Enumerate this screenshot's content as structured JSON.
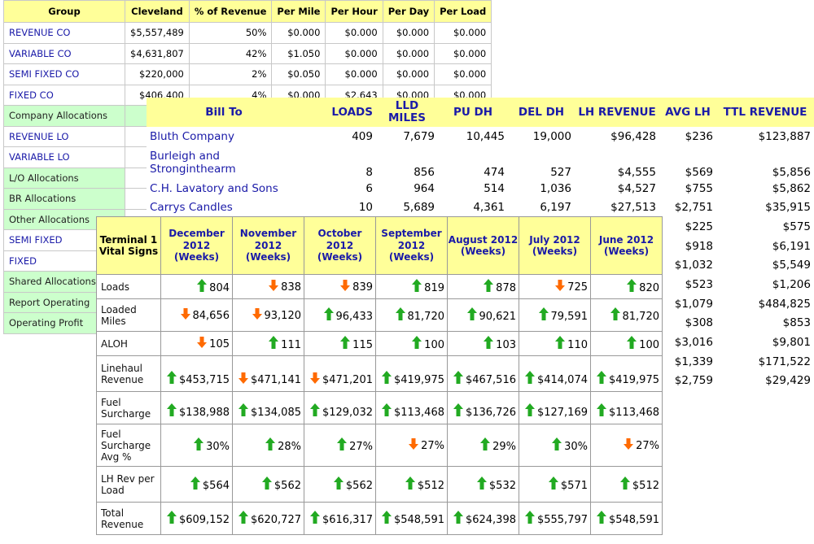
{
  "group_table": {
    "headers": [
      "Group",
      "Cleveland",
      "% of Revenue",
      "Per Mile",
      "Per Hour",
      "Per Day",
      "Per Load"
    ],
    "rows": [
      {
        "label": "REVENUE CO",
        "type": "link",
        "values": [
          "$5,557,489",
          "50%",
          "$0.000",
          "$0.000",
          "$0.000",
          "$0.000"
        ]
      },
      {
        "label": "VARIABLE CO",
        "type": "link",
        "values": [
          "$4,631,807",
          "42%",
          "$1.050",
          "$0.000",
          "$0.000",
          "$0.000"
        ]
      },
      {
        "label": "SEMI FIXED CO",
        "type": "link",
        "values": [
          "$220,000",
          "2%",
          "$0.050",
          "$0.000",
          "$0.000",
          "$0.000"
        ]
      },
      {
        "label": "FIXED CO",
        "type": "link",
        "values": [
          "$406,400",
          "4%",
          "$0.000",
          "$2.643",
          "$0.000",
          "$0.000"
        ]
      },
      {
        "label": "Company Allocations",
        "type": "alloc",
        "values": []
      },
      {
        "label": "REVENUE LO",
        "type": "link",
        "values": [
          "$5,5",
          "",
          "",
          "",
          "",
          ""
        ]
      },
      {
        "label": "VARIABLE LO",
        "type": "link",
        "values": [
          "$4,0",
          "",
          "",
          "",
          "",
          ""
        ]
      },
      {
        "label": "L/O Allocations",
        "type": "alloc",
        "values": []
      },
      {
        "label": "BR Allocations",
        "type": "alloc",
        "values": []
      },
      {
        "label": "Other Allocations",
        "type": "alloc",
        "values": []
      },
      {
        "label": "SEMI FIXED",
        "type": "link",
        "values": []
      },
      {
        "label": "FIXED",
        "type": "link",
        "values": []
      },
      {
        "label": "Shared Allocations",
        "type": "alloc",
        "values": []
      },
      {
        "label": "Report Operating",
        "type": "alloc",
        "values": []
      },
      {
        "label": "Operating Profit",
        "type": "alloc",
        "values": []
      }
    ]
  },
  "bill_table": {
    "headers": [
      "Bill To",
      "LOADS",
      "LLD MILES",
      "PU DH",
      "DEL DH",
      "LH REVENUE",
      "AVG LH",
      "TTL REVENUE"
    ],
    "rows": [
      {
        "name": "Bluth Company",
        "loads": "409",
        "lld_miles": "7,679",
        "pu_dh": "10,445",
        "del_dh": "19,000",
        "lh_revenue": "$96,428",
        "avg_lh": "$236",
        "ttl_revenue": "$123,887"
      },
      {
        "name": "Burleigh and Stronginthearm",
        "loads": "8",
        "lld_miles": "856",
        "pu_dh": "474",
        "del_dh": "527",
        "lh_revenue": "$4,555",
        "avg_lh": "$569",
        "ttl_revenue": "$5,856"
      },
      {
        "name": "C.H. Lavatory and Sons",
        "loads": "6",
        "lld_miles": "964",
        "pu_dh": "514",
        "del_dh": "1,036",
        "lh_revenue": "$4,527",
        "avg_lh": "$755",
        "ttl_revenue": "$5,862"
      },
      {
        "name": "Carrys Candles",
        "loads": "10",
        "lld_miles": "5,689",
        "pu_dh": "4,361",
        "del_dh": "6,197",
        "lh_revenue": "$27,513",
        "avg_lh": "$2,751",
        "ttl_revenue": "$35,915"
      },
      {
        "name": "",
        "loads": "",
        "lld_miles": "",
        "pu_dh": "",
        "del_dh": "",
        "lh_revenue": "",
        "avg_lh": "$225",
        "ttl_revenue": "$575"
      },
      {
        "name": "",
        "loads": "",
        "lld_miles": "",
        "pu_dh": "",
        "del_dh": "",
        "lh_revenue": "",
        "avg_lh": "$918",
        "ttl_revenue": "$6,191"
      },
      {
        "name": "",
        "loads": "",
        "lld_miles": "",
        "pu_dh": "",
        "del_dh": "",
        "lh_revenue": "",
        "avg_lh": "$1,032",
        "ttl_revenue": "$5,549"
      },
      {
        "name": "",
        "loads": "",
        "lld_miles": "",
        "pu_dh": "",
        "del_dh": "",
        "lh_revenue": "",
        "avg_lh": "$523",
        "ttl_revenue": "$1,206"
      },
      {
        "name": "",
        "loads": "",
        "lld_miles": "",
        "pu_dh": "",
        "del_dh": "",
        "lh_revenue": "",
        "avg_lh": "$1,079",
        "ttl_revenue": "$484,825"
      },
      {
        "name": "",
        "loads": "",
        "lld_miles": "",
        "pu_dh": "",
        "del_dh": "",
        "lh_revenue": "",
        "avg_lh": "$308",
        "ttl_revenue": "$853"
      },
      {
        "name": "",
        "loads": "",
        "lld_miles": "",
        "pu_dh": "",
        "del_dh": "",
        "lh_revenue": "",
        "avg_lh": "$3,016",
        "ttl_revenue": "$9,801"
      },
      {
        "name": "",
        "loads": "",
        "lld_miles": "",
        "pu_dh": "",
        "del_dh": "",
        "lh_revenue": "",
        "avg_lh": "$1,339",
        "ttl_revenue": "$171,522"
      },
      {
        "name": "",
        "loads": "",
        "lld_miles": "",
        "pu_dh": "",
        "del_dh": "",
        "lh_revenue": "",
        "avg_lh": "$2,759",
        "ttl_revenue": "$29,429"
      }
    ]
  },
  "vital_table": {
    "corner_label": "Terminal 1 Vital Signs",
    "months": [
      "December 2012 (Weeks)",
      "November 2012 (Weeks)",
      "October 2012 (Weeks)",
      "September 2012 (Weeks)",
      "August 2012 (Weeks)",
      "July 2012 (Weeks)",
      "June 2012 (Weeks)"
    ],
    "rows": [
      {
        "label": "Loads",
        "cells": [
          {
            "dir": "up",
            "value": "804"
          },
          {
            "dir": "down",
            "value": "838"
          },
          {
            "dir": "down",
            "value": "839"
          },
          {
            "dir": "up",
            "value": "819"
          },
          {
            "dir": "up",
            "value": "878"
          },
          {
            "dir": "down",
            "value": "725"
          },
          {
            "dir": "up",
            "value": "820"
          }
        ]
      },
      {
        "label": "Loaded Miles",
        "cells": [
          {
            "dir": "down",
            "value": "84,656"
          },
          {
            "dir": "down",
            "value": "93,120"
          },
          {
            "dir": "up",
            "value": "96,433"
          },
          {
            "dir": "up",
            "value": "81,720"
          },
          {
            "dir": "up",
            "value": "90,621"
          },
          {
            "dir": "up",
            "value": "79,591"
          },
          {
            "dir": "up",
            "value": "81,720"
          }
        ]
      },
      {
        "label": "ALOH",
        "cells": [
          {
            "dir": "down",
            "value": "105"
          },
          {
            "dir": "up",
            "value": "111"
          },
          {
            "dir": "up",
            "value": "115"
          },
          {
            "dir": "up",
            "value": "100"
          },
          {
            "dir": "up",
            "value": "103"
          },
          {
            "dir": "up",
            "value": "110"
          },
          {
            "dir": "up",
            "value": "100"
          }
        ]
      },
      {
        "label": "Linehaul Revenue",
        "cells": [
          {
            "dir": "up",
            "value": "$453,715"
          },
          {
            "dir": "down",
            "value": "$471,141"
          },
          {
            "dir": "down",
            "value": "$471,201"
          },
          {
            "dir": "up",
            "value": "$419,975"
          },
          {
            "dir": "up",
            "value": "$467,516"
          },
          {
            "dir": "up",
            "value": "$414,074"
          },
          {
            "dir": "up",
            "value": "$419,975"
          }
        ]
      },
      {
        "label": "Fuel Surcharge",
        "cells": [
          {
            "dir": "up",
            "value": "$138,988"
          },
          {
            "dir": "up",
            "value": "$134,085"
          },
          {
            "dir": "up",
            "value": "$129,032"
          },
          {
            "dir": "up",
            "value": "$113,468"
          },
          {
            "dir": "up",
            "value": "$136,726"
          },
          {
            "dir": "up",
            "value": "$127,169"
          },
          {
            "dir": "up",
            "value": "$113,468"
          }
        ]
      },
      {
        "label": "Fuel Surcharge Avg %",
        "cells": [
          {
            "dir": "up",
            "value": "30%"
          },
          {
            "dir": "up",
            "value": "28%"
          },
          {
            "dir": "up",
            "value": "27%"
          },
          {
            "dir": "down",
            "value": "27%"
          },
          {
            "dir": "up",
            "value": "29%"
          },
          {
            "dir": "up",
            "value": "30%"
          },
          {
            "dir": "down",
            "value": "27%"
          }
        ]
      },
      {
        "label": "LH Rev per Load",
        "cells": [
          {
            "dir": "up",
            "value": "$564"
          },
          {
            "dir": "up",
            "value": "$562"
          },
          {
            "dir": "up",
            "value": "$562"
          },
          {
            "dir": "up",
            "value": "$512"
          },
          {
            "dir": "up",
            "value": "$532"
          },
          {
            "dir": "up",
            "value": "$571"
          },
          {
            "dir": "up",
            "value": "$512"
          }
        ]
      },
      {
        "label": "Total Revenue",
        "cells": [
          {
            "dir": "up",
            "value": "$609,152"
          },
          {
            "dir": "up",
            "value": "$620,727"
          },
          {
            "dir": "up",
            "value": "$616,317"
          },
          {
            "dir": "up",
            "value": "$548,591"
          },
          {
            "dir": "up",
            "value": "$624,398"
          },
          {
            "dir": "up",
            "value": "$555,797"
          },
          {
            "dir": "up",
            "value": "$548,591"
          }
        ]
      }
    ]
  },
  "colors": {
    "header_bg": "#ffff99",
    "link_blue": "#1a1aa8",
    "alloc_green": "#ccffcc",
    "arrow_up": "#22aa22",
    "arrow_down": "#ff6a00"
  },
  "icons": {
    "up": "green-up-arrow-icon",
    "down": "orange-down-arrow-icon"
  }
}
